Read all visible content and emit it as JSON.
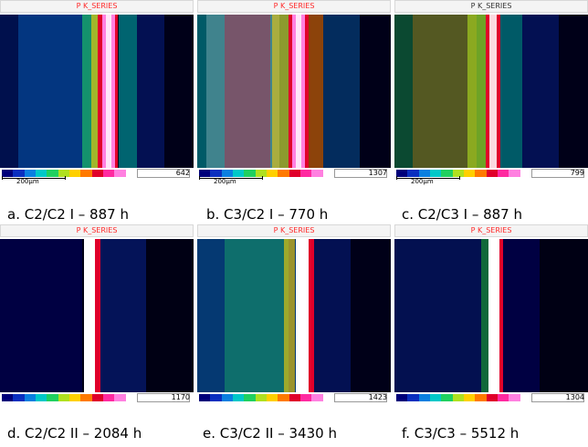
{
  "panels": [
    {
      "title": "P K_SERIES",
      "max_value": "642",
      "scale_label": "200µm",
      "caption": "a. C2/C2 I – 887 h"
    },
    {
      "title": "P K_SERIES",
      "max_value": "1307",
      "scale_label": "200µm",
      "caption": "b. C3/C2 I – 770 h"
    },
    {
      "title": "P K_SERIES",
      "max_value": "799",
      "scale_label": "200µm",
      "caption": "c. C2/C3 I – 887 h"
    },
    {
      "title": "P K_SERIES",
      "max_value": "1170",
      "scale_label": "",
      "caption": "d. C2/C2 II – 2084 h"
    },
    {
      "title": "P K_SERIES",
      "max_value": "1423",
      "scale_label": "",
      "caption": "e. C3/C2 II – 3430 h"
    },
    {
      "title": "P K_SERIES",
      "max_value": "1304",
      "scale_label": "",
      "caption": "f. C3/C3 – 5512 h"
    }
  ],
  "colors": {
    "title_red": "#ff2a2a",
    "background_map": "#000010",
    "band_white": "#ffffff",
    "palette": [
      "#00007a",
      "#0a2fbf",
      "#0a7fe0",
      "#00c8c8",
      "#20d060",
      "#b0e020",
      "#ffd000",
      "#ff7a00",
      "#e0002a",
      "#ff2aa0",
      "#ff80e0",
      "#ffffff"
    ]
  }
}
